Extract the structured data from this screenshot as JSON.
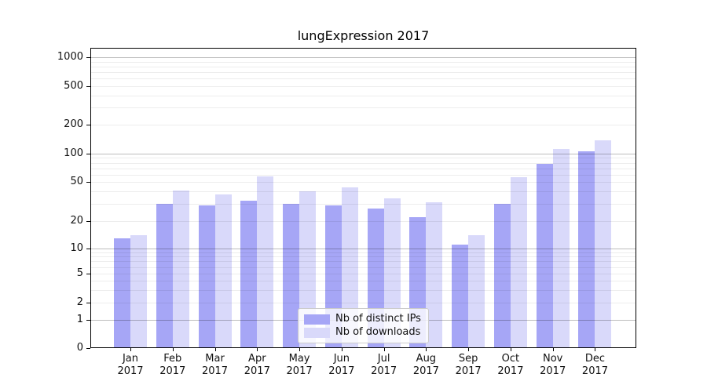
{
  "chart_data": {
    "type": "bar",
    "title": "lungExpression 2017",
    "categories": [
      "Jan",
      "Feb",
      "Mar",
      "Apr",
      "May",
      "Jun",
      "Jul",
      "Aug",
      "Sep",
      "Oct",
      "Nov",
      "Dec"
    ],
    "category_year": "2017",
    "series": [
      {
        "name": "Nb of distinct IPs",
        "color": "#a6a6f6",
        "values": [
          13,
          30,
          29,
          32,
          30,
          29,
          27,
          22,
          11,
          30,
          78,
          106
        ]
      },
      {
        "name": "Nb of downloads",
        "color": "#d9d9fa",
        "values": [
          14,
          41,
          37,
          57,
          40,
          44,
          34,
          31,
          14,
          56,
          112,
          137
        ]
      }
    ],
    "yscale": "symlog",
    "yticks": [
      0,
      1,
      2,
      5,
      10,
      20,
      50,
      100,
      200,
      500,
      1000
    ],
    "ylim": [
      0,
      1500
    ],
    "xlabel": "",
    "ylabel": "",
    "grid": "horizontal-log",
    "legend_position": "bottom-center",
    "colors": {
      "axis": "#000000",
      "grid_major": "#b8b8b8",
      "grid_minor": "#e9e9e9",
      "background": "#ffffff"
    }
  }
}
